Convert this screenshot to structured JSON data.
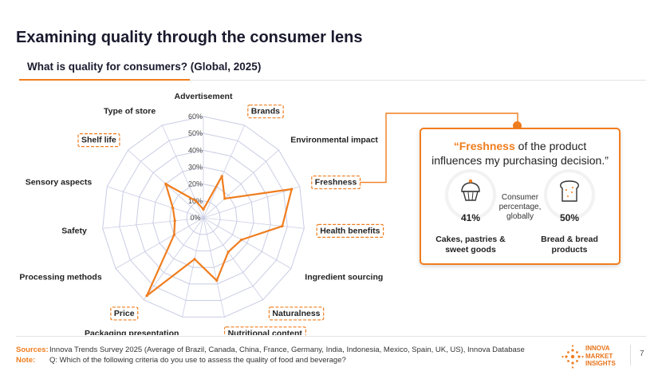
{
  "title": "Examining quality through the consumer lens",
  "subtitle": "What is quality for consumers? (Global, 2025)",
  "chart_data": {
    "type": "radar",
    "rmax": 60,
    "ticks": [
      "0%",
      "10%",
      "20%",
      "30%",
      "40%",
      "50%",
      "60%"
    ],
    "tick_values": [
      0,
      10,
      20,
      30,
      40,
      50,
      60
    ],
    "grid": true,
    "highlighted": [
      "Brands",
      "Freshness",
      "Health benefits",
      "Naturalness",
      "Nutritional content",
      "Price",
      "Shelf life"
    ],
    "categories": [
      "Advertisement",
      "Brands",
      "Environmental impact",
      "Freshness",
      "Health benefits",
      "Ingredient sourcing",
      "Naturalness",
      "Nutritional content",
      "Packaging presentation",
      "Price",
      "Processing methods",
      "Safety",
      "Sensory aspects",
      "Shelf life",
      "Type of store"
    ],
    "values": [
      5,
      27,
      17,
      55,
      47,
      26,
      25,
      38,
      25,
      57,
      20,
      17,
      19,
      30,
      11
    ]
  },
  "callout": {
    "quote_highlight": "Freshness",
    "quote_rest_line1": " of the product",
    "quote_line2": "influences my purchasing decision.",
    "quote_open": "“",
    "quote_close": "”",
    "middle_label": "Consumer percentage, globally",
    "stats": [
      {
        "value": "41%",
        "label_line1": "Cakes, pastries &",
        "label_line2": "sweet goods",
        "icon": "cupcake-icon"
      },
      {
        "value": "50%",
        "label_line1": "Bread & bread",
        "label_line2": "products",
        "icon": "bread-icon"
      }
    ]
  },
  "footer": {
    "sources_label": "Sources:",
    "sources_text": "Innova Trends Survey 2025 (Average of Brazil, Canada, China, France, Germany, India, Indonesia, Mexico, Spain, UK, US), Innova Database",
    "note_label": "Note:",
    "note_text": "Q: Which of the following criteria do you use to assess the quality of food and beverage?",
    "logo_line1": "INNOVA",
    "logo_line2": "MARKET",
    "logo_line3": "INSIGHTS",
    "page": "7"
  },
  "colors": {
    "accent": "#f07d1e",
    "grid": "#c9cce4",
    "text": "#1a1a2e"
  }
}
